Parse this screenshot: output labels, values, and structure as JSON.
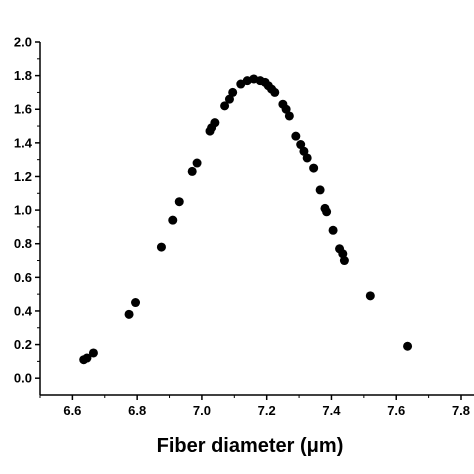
{
  "chart_data": {
    "type": "scatter",
    "xlabel": "Fiber diameter (μm)",
    "ylabel": "",
    "xlim": [
      6.5,
      7.8
    ],
    "ylim": [
      -0.1,
      2.0
    ],
    "x_ticks": [
      "6.6",
      "6.8",
      "7.0",
      "7.2",
      "7.4",
      "7.6",
      "7.8"
    ],
    "y_ticks": [
      "0.0",
      "0.2",
      "0.4",
      "0.6",
      "0.8",
      "1.0",
      "1.2",
      "1.4",
      "1.6",
      "1.8",
      "2.0"
    ],
    "grid": false,
    "marker_color": "#000000",
    "series": [
      {
        "points": [
          [
            6.635,
            0.11
          ],
          [
            6.645,
            0.12
          ],
          [
            6.665,
            0.15
          ],
          [
            6.775,
            0.38
          ],
          [
            6.795,
            0.45
          ],
          [
            6.875,
            0.78
          ],
          [
            6.91,
            0.94
          ],
          [
            6.93,
            1.05
          ],
          [
            6.97,
            1.23
          ],
          [
            6.985,
            1.28
          ],
          [
            7.025,
            1.47
          ],
          [
            7.03,
            1.49
          ],
          [
            7.04,
            1.52
          ],
          [
            7.07,
            1.62
          ],
          [
            7.085,
            1.66
          ],
          [
            7.095,
            1.7
          ],
          [
            7.12,
            1.75
          ],
          [
            7.14,
            1.77
          ],
          [
            7.16,
            1.78
          ],
          [
            7.18,
            1.77
          ],
          [
            7.195,
            1.76
          ],
          [
            7.205,
            1.74
          ],
          [
            7.215,
            1.72
          ],
          [
            7.225,
            1.7
          ],
          [
            7.25,
            1.63
          ],
          [
            7.26,
            1.6
          ],
          [
            7.27,
            1.56
          ],
          [
            7.29,
            1.44
          ],
          [
            7.305,
            1.39
          ],
          [
            7.315,
            1.35
          ],
          [
            7.325,
            1.31
          ],
          [
            7.345,
            1.25
          ],
          [
            7.365,
            1.12
          ],
          [
            7.38,
            1.01
          ],
          [
            7.385,
            0.99
          ],
          [
            7.405,
            0.88
          ],
          [
            7.425,
            0.77
          ],
          [
            7.435,
            0.74
          ],
          [
            7.44,
            0.7
          ],
          [
            7.52,
            0.49
          ],
          [
            7.635,
            0.19
          ]
        ]
      }
    ]
  }
}
